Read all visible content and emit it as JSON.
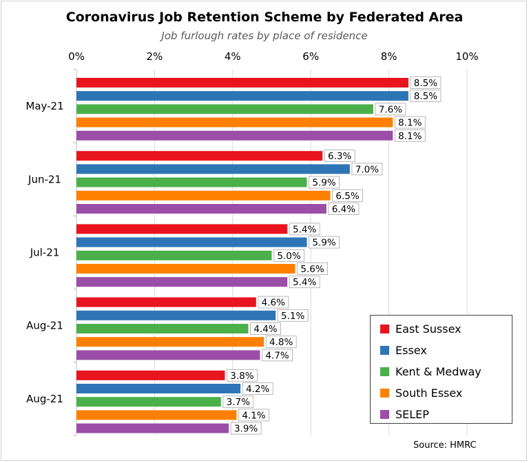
{
  "chart_data": {
    "type": "bar",
    "orientation": "horizontal",
    "title": "Coronavirus Job Retention Scheme by Federated Area",
    "subtitle": "Job furlough rates by place of residence",
    "source": "Source: HMRC",
    "categories": [
      "May-21",
      "Jun-21",
      "Jul-21",
      "Aug-21",
      "Aug-21"
    ],
    "xlim": [
      0,
      10
    ],
    "x_ticks": [
      "0%",
      "2%",
      "4%",
      "6%",
      "8%",
      "10%"
    ],
    "x_tick_values": [
      0,
      2,
      4,
      6,
      8,
      10
    ],
    "grid": true,
    "legend_position": "bottom-right",
    "series": [
      {
        "name": "East Sussex",
        "color": "#e8141e",
        "values": [
          8.5,
          6.3,
          5.4,
          4.6,
          3.8
        ],
        "labels": [
          "8.5%",
          "6.3%",
          "5.4%",
          "4.6%",
          "3.8%"
        ]
      },
      {
        "name": "Essex",
        "color": "#2e75b6",
        "values": [
          8.5,
          7.0,
          5.9,
          5.1,
          4.2
        ],
        "labels": [
          "8.5%",
          "7.0%",
          "5.9%",
          "5.1%",
          "4.2%"
        ]
      },
      {
        "name": "Kent & Medway",
        "color": "#4cb04a",
        "values": [
          7.6,
          5.9,
          5.0,
          4.4,
          3.7
        ],
        "labels": [
          "7.6%",
          "5.9%",
          "5.0%",
          "4.4%",
          "3.7%"
        ]
      },
      {
        "name": "South Essex",
        "color": "#ff8000",
        "values": [
          8.1,
          6.5,
          5.6,
          4.8,
          4.1
        ],
        "labels": [
          "8.1%",
          "6.5%",
          "5.6%",
          "4.8%",
          "4.1%"
        ]
      },
      {
        "name": "SELEP",
        "color": "#9b4ea8",
        "values": [
          8.1,
          6.4,
          5.4,
          4.7,
          3.9
        ],
        "labels": [
          "8.1%",
          "6.4%",
          "5.4%",
          "4.7%",
          "3.9%"
        ]
      }
    ]
  }
}
